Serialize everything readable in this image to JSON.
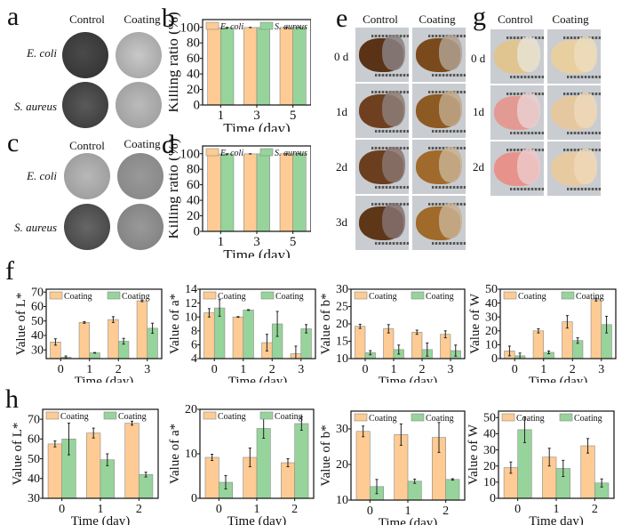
{
  "panels": {
    "a": {
      "letter": "a",
      "col_headers": [
        "Control",
        "Coating"
      ],
      "row_labels": [
        "E. coli",
        "S. aureus"
      ]
    },
    "c": {
      "letter": "c",
      "col_headers": [
        "Control",
        "Coating"
      ],
      "row_labels": [
        "E. coli",
        "S. aureus"
      ]
    },
    "e": {
      "letter": "e",
      "col_headers": [
        "Control",
        "Coating"
      ],
      "row_labels": [
        "0 d",
        "1d",
        "2d",
        "3d"
      ]
    },
    "g": {
      "letter": "g",
      "col_headers": [
        "Control",
        "Coating"
      ],
      "row_labels": [
        "0 d",
        "1d",
        "2d"
      ]
    },
    "b": {
      "letter": "b"
    },
    "d": {
      "letter": "d"
    },
    "f": {
      "letter": "f"
    },
    "h": {
      "letter": "h"
    }
  },
  "colors": {
    "orange": "#FDCB93",
    "green": "#96D49B",
    "axis": "#111111"
  },
  "chart_data": [
    {
      "id": "b",
      "type": "bar",
      "title": "",
      "xlabel": "Time (day)",
      "ylabel": "Killing ratio (%)",
      "categories": [
        "1",
        "3",
        "5"
      ],
      "ylim": [
        0,
        110
      ],
      "yticks": [
        0,
        20,
        40,
        60,
        80,
        100
      ],
      "legend": "top",
      "series": [
        {
          "name": "E. coli",
          "values": [
            99.5,
            99.8,
            99.9
          ],
          "errors": [
            0.5,
            0.2,
            0.1
          ]
        },
        {
          "name": "S. aureus",
          "values": [
            99.6,
            99.8,
            99.9
          ],
          "errors": [
            0.4,
            0.2,
            0.1
          ]
        }
      ]
    },
    {
      "id": "d",
      "type": "bar",
      "title": "",
      "xlabel": "Time (day)",
      "ylabel": "Killing ratio (%)",
      "categories": [
        "1",
        "3",
        "5"
      ],
      "ylim": [
        0,
        110
      ],
      "yticks": [
        0,
        20,
        40,
        60,
        80,
        100
      ],
      "legend": "top",
      "series": [
        {
          "name": "E. coli",
          "values": [
            99.6,
            99.8,
            99.9
          ],
          "errors": [
            0.4,
            0.2,
            0.1
          ]
        },
        {
          "name": "S. aureus",
          "values": [
            99.7,
            99.8,
            99.9
          ],
          "errors": [
            0.3,
            0.2,
            0.1
          ]
        }
      ]
    },
    {
      "id": "f1",
      "type": "bar",
      "xlabel": "Time (day)",
      "ylabel": "Value of L*",
      "categories": [
        "0",
        "1",
        "2",
        "3"
      ],
      "ylim": [
        24,
        72
      ],
      "yticks": [
        30,
        40,
        50,
        60,
        70
      ],
      "legend": "top",
      "series": [
        {
          "name": "Coating",
          "values": [
            35.5,
            49,
            51,
            64
          ],
          "errors": [
            2.2,
            0.6,
            2,
            0.6
          ]
        },
        {
          "name": "Coating",
          "values": [
            25,
            28,
            36,
            45
          ],
          "errors": [
            0.8,
            0.2,
            2,
            3.5
          ]
        }
      ]
    },
    {
      "id": "f2",
      "type": "bar",
      "xlabel": "Time (day)",
      "ylabel": "Value of a*",
      "categories": [
        "0",
        "1",
        "2",
        "3"
      ],
      "ylim": [
        4,
        14
      ],
      "yticks": [
        4,
        6,
        8,
        10,
        12,
        14
      ],
      "legend": "top",
      "series": [
        {
          "name": "Coating",
          "values": [
            10.6,
            10,
            6.3,
            4.7
          ],
          "errors": [
            0.6,
            0.05,
            1.2,
            1.1
          ]
        },
        {
          "name": "Coating",
          "values": [
            11.3,
            11,
            9,
            8.3
          ],
          "errors": [
            1.2,
            0.05,
            1.8,
            0.6
          ]
        }
      ]
    },
    {
      "id": "f3",
      "type": "bar",
      "xlabel": "Time (day)",
      "ylabel": "Value of b*",
      "categories": [
        "0",
        "1",
        "2",
        "3"
      ],
      "ylim": [
        10,
        30
      ],
      "yticks": [
        10,
        15,
        20,
        25,
        30
      ],
      "legend": "top",
      "series": [
        {
          "name": "Coating",
          "values": [
            19.3,
            18.6,
            17.6,
            17
          ],
          "errors": [
            0.6,
            1.2,
            0.6,
            1
          ]
        },
        {
          "name": "Coating",
          "values": [
            11.7,
            12.6,
            12.6,
            12.3
          ],
          "errors": [
            0.6,
            1.3,
            1.9,
            1.6
          ]
        }
      ]
    },
    {
      "id": "f4",
      "type": "bar",
      "xlabel": "Time (day)",
      "ylabel": "Value of W",
      "categories": [
        "0",
        "1",
        "2",
        "3"
      ],
      "ylim": [
        0,
        50
      ],
      "yticks": [
        0,
        10,
        20,
        30,
        40,
        50
      ],
      "legend": "top",
      "series": [
        {
          "name": "Coating",
          "values": [
            5.5,
            20,
            26.5,
            42.5
          ],
          "errors": [
            3.5,
            1.5,
            4.5,
            1
          ]
        },
        {
          "name": "Coating",
          "values": [
            2,
            4.5,
            13,
            24.5
          ],
          "errors": [
            2,
            1,
            2,
            6
          ]
        }
      ]
    },
    {
      "id": "h1",
      "type": "bar",
      "xlabel": "Time (day)",
      "ylabel": "Value of L*",
      "categories": [
        "0",
        "1",
        "2"
      ],
      "ylim": [
        30,
        75
      ],
      "yticks": [
        30,
        40,
        50,
        60,
        70
      ],
      "legend": "top",
      "series": [
        {
          "name": "Coating",
          "values": [
            57.5,
            63,
            68
          ],
          "errors": [
            1.5,
            2.5,
            1
          ]
        },
        {
          "name": "Coating",
          "values": [
            60,
            49.5,
            42
          ],
          "errors": [
            8,
            3,
            1.2
          ]
        }
      ]
    },
    {
      "id": "h2",
      "type": "bar",
      "xlabel": "Time (day)",
      "ylabel": "Value of a*",
      "categories": [
        "0",
        "1",
        "2"
      ],
      "ylim": [
        0,
        20
      ],
      "yticks": [
        0,
        10,
        20
      ],
      "legend": "top",
      "series": [
        {
          "name": "Coating",
          "values": [
            9.2,
            9.2,
            8
          ],
          "errors": [
            0.7,
            2.1,
            0.9
          ]
        },
        {
          "name": "Coating",
          "values": [
            3.6,
            15.7,
            16.8
          ],
          "errors": [
            1.5,
            2.2,
            1.5
          ]
        }
      ]
    },
    {
      "id": "h3",
      "type": "bar",
      "xlabel": "Time (day)",
      "ylabel": "Value of b*",
      "categories": [
        "0",
        "1",
        "2"
      ],
      "ylim": [
        10,
        35
      ],
      "yticks": [
        10,
        20,
        30
      ],
      "legend": "top",
      "series": [
        {
          "name": "Coating",
          "values": [
            29.3,
            28.4,
            27.6
          ],
          "errors": [
            1.5,
            3,
            4.2
          ]
        },
        {
          "name": "Coating",
          "values": [
            13.8,
            15.3,
            15.8
          ],
          "errors": [
            2,
            0.6,
            0.2
          ]
        }
      ]
    },
    {
      "id": "h4",
      "type": "bar",
      "xlabel": "Time day)",
      "ylabel": "Value of W",
      "categories": [
        "0",
        "1",
        "2"
      ],
      "ylim": [
        0,
        54
      ],
      "yticks": [
        0,
        10,
        20,
        30,
        40,
        50
      ],
      "legend": "top",
      "series": [
        {
          "name": "Coating",
          "values": [
            19,
            25.5,
            32.5
          ],
          "errors": [
            3.5,
            5.5,
            4.5
          ]
        },
        {
          "name": "Coating",
          "values": [
            42.5,
            18.5,
            9.5
          ],
          "errors": [
            8,
            5,
            2.5
          ]
        }
      ]
    }
  ]
}
